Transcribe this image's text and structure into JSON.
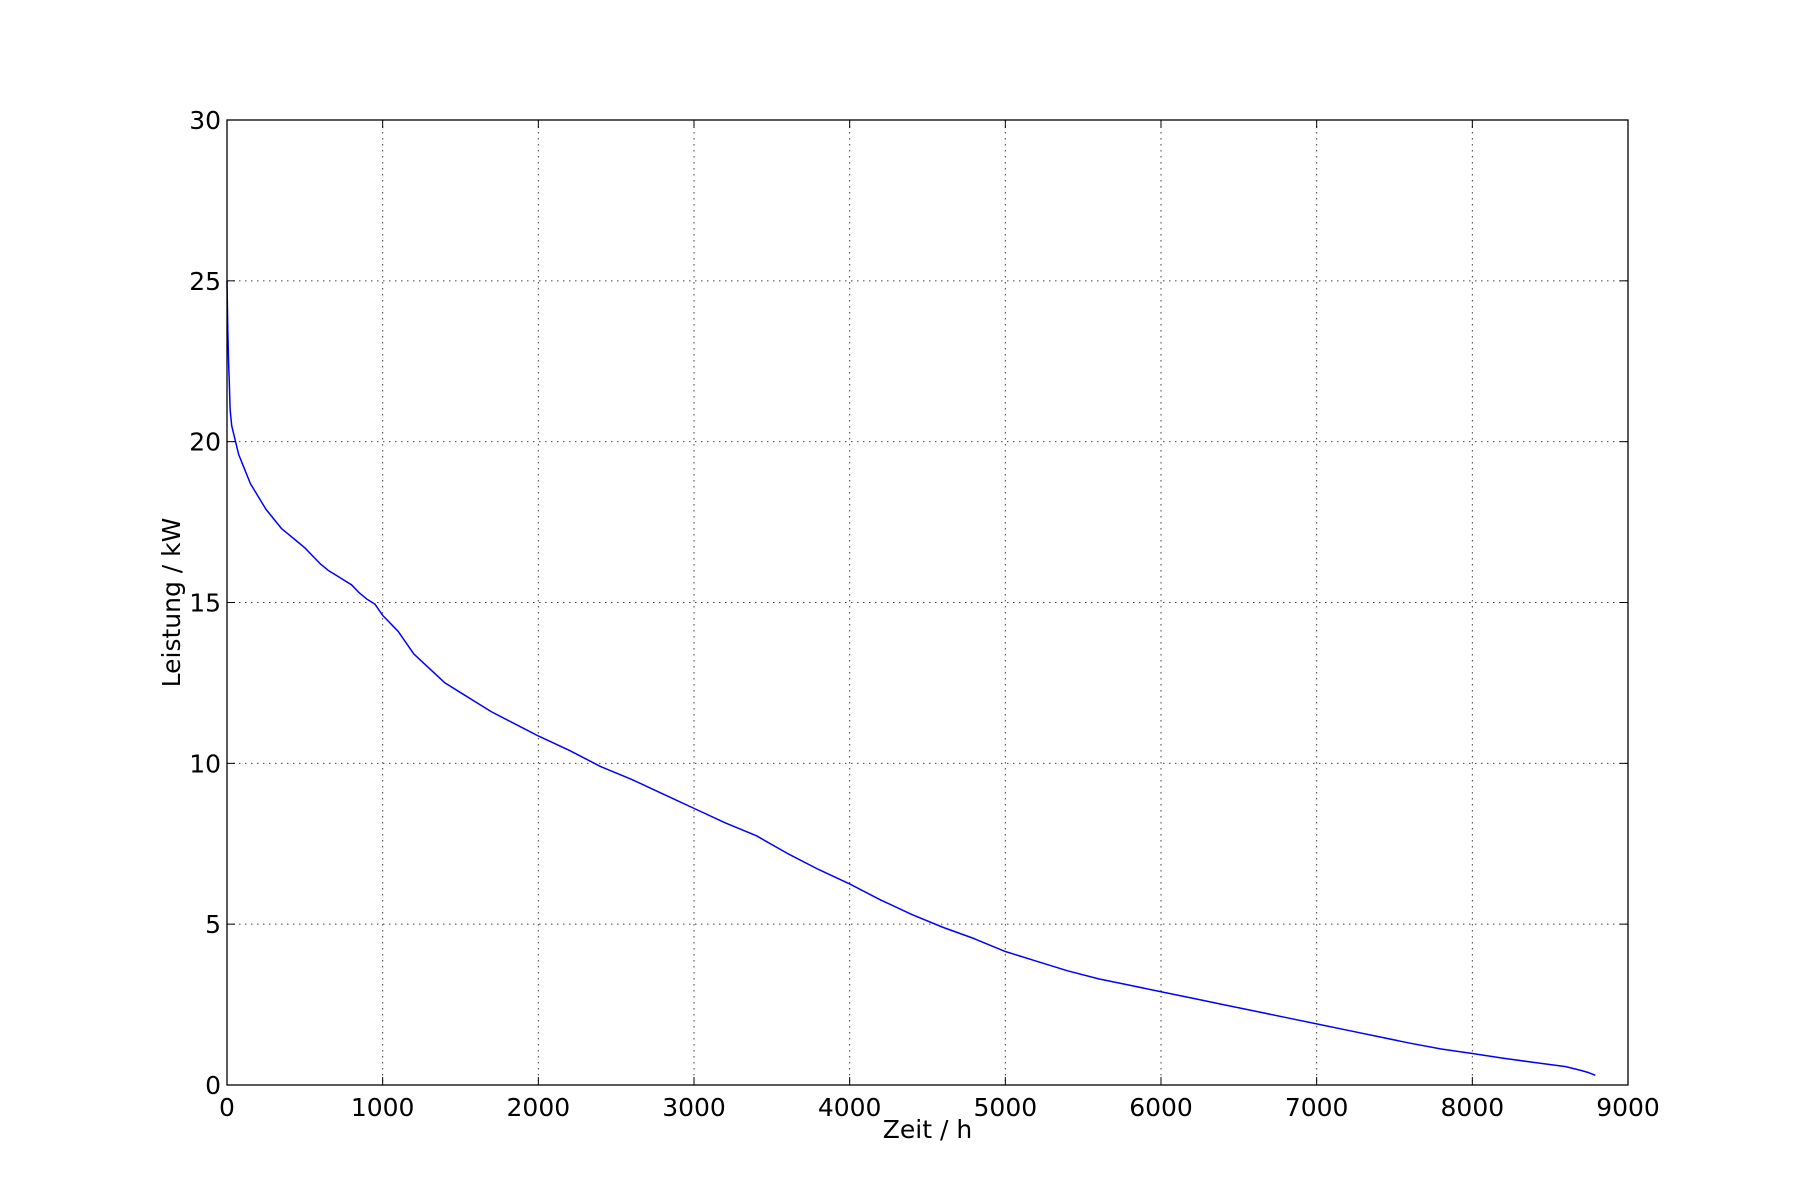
{
  "chart_data": {
    "type": "line",
    "title": "",
    "xlabel": "Zeit / h",
    "ylabel": "Leistung / kW",
    "xlim": [
      0,
      9000
    ],
    "ylim": [
      0,
      30
    ],
    "xticks": [
      0,
      1000,
      2000,
      3000,
      4000,
      5000,
      6000,
      7000,
      8000,
      9000
    ],
    "yticks": [
      0,
      5,
      10,
      15,
      20,
      25,
      30
    ],
    "xtick_labels": [
      "0",
      "1000",
      "2000",
      "3000",
      "4000",
      "5000",
      "6000",
      "7000",
      "8000",
      "9000"
    ],
    "ytick_labels": [
      "0",
      "5",
      "10",
      "15",
      "20",
      "25",
      "30"
    ],
    "grid": true,
    "series": [
      {
        "color": "#0000ff",
        "x": [
          0,
          5,
          10,
          15,
          20,
          30,
          50,
          75,
          100,
          150,
          200,
          250,
          300,
          350,
          400,
          450,
          500,
          550,
          600,
          650,
          700,
          750,
          800,
          850,
          900,
          950,
          1000,
          1100,
          1200,
          1300,
          1400,
          1500,
          1600,
          1700,
          1800,
          1900,
          2000,
          2200,
          2400,
          2600,
          2800,
          3000,
          3200,
          3400,
          3600,
          3800,
          4000,
          4200,
          4400,
          4600,
          4800,
          5000,
          5200,
          5400,
          5600,
          5800,
          6000,
          6200,
          6400,
          6600,
          6800,
          7000,
          7200,
          7400,
          7600,
          7800,
          8000,
          8200,
          8400,
          8600,
          8700,
          8750,
          8790
        ],
        "y": [
          25.0,
          23.5,
          22.5,
          21.8,
          21.0,
          20.5,
          20.1,
          19.6,
          19.3,
          18.7,
          18.3,
          17.9,
          17.6,
          17.3,
          17.1,
          16.9,
          16.7,
          16.45,
          16.2,
          16.0,
          15.85,
          15.7,
          15.55,
          15.3,
          15.1,
          14.95,
          14.6,
          14.1,
          13.4,
          12.95,
          12.5,
          12.2,
          11.9,
          11.6,
          11.35,
          11.1,
          10.85,
          10.4,
          9.9,
          9.5,
          9.05,
          8.6,
          8.15,
          7.75,
          7.2,
          6.7,
          6.25,
          5.75,
          5.3,
          4.9,
          4.55,
          4.15,
          3.85,
          3.55,
          3.3,
          3.1,
          2.9,
          2.7,
          2.5,
          2.3,
          2.1,
          1.9,
          1.7,
          1.5,
          1.3,
          1.12,
          0.98,
          0.83,
          0.7,
          0.57,
          0.45,
          0.38,
          0.3
        ]
      }
    ]
  }
}
